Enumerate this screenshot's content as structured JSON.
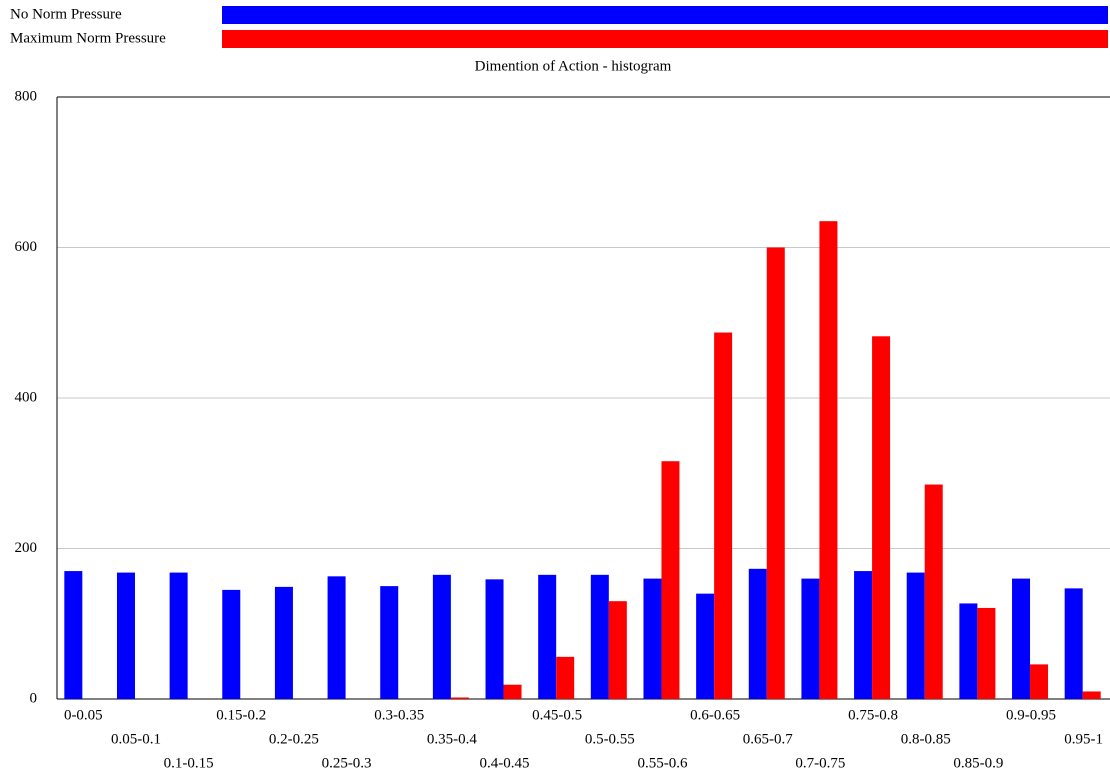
{
  "chart_data": {
    "type": "bar",
    "title": "Dimention of Action - histogram",
    "categories": [
      "0-0.05",
      "0.05-0.1",
      "0.1-0.15",
      "0.15-0.2",
      "0.2-0.25",
      "0.25-0.3",
      "0.3-0.35",
      "0.35-0.4",
      "0.4-0.45",
      "0.45-0.5",
      "0.5-0.55",
      "0.55-0.6",
      "0.6-0.65",
      "0.65-0.7",
      "0.7-0.75",
      "0.75-0.8",
      "0.8-0.85",
      "0.85-0.9",
      "0.9-0.95",
      "0.95-1"
    ],
    "series": [
      {
        "name": "No Norm Pressure",
        "color": "#0000ff",
        "values": [
          170,
          168,
          168,
          145,
          149,
          163,
          150,
          165,
          159,
          165,
          165,
          160,
          140,
          173,
          160,
          170,
          168,
          127,
          160,
          147
        ]
      },
      {
        "name": "Maximum Norm Pressure",
        "color": "#ff0000",
        "values": [
          0,
          0,
          0,
          0,
          0,
          0,
          0,
          2,
          19,
          56,
          130,
          316,
          487,
          600,
          635,
          482,
          285,
          121,
          46,
          10
        ]
      }
    ],
    "ylim": [
      0,
      800
    ],
    "yticks": [
      0,
      200,
      400,
      600,
      800
    ],
    "grid": true
  }
}
